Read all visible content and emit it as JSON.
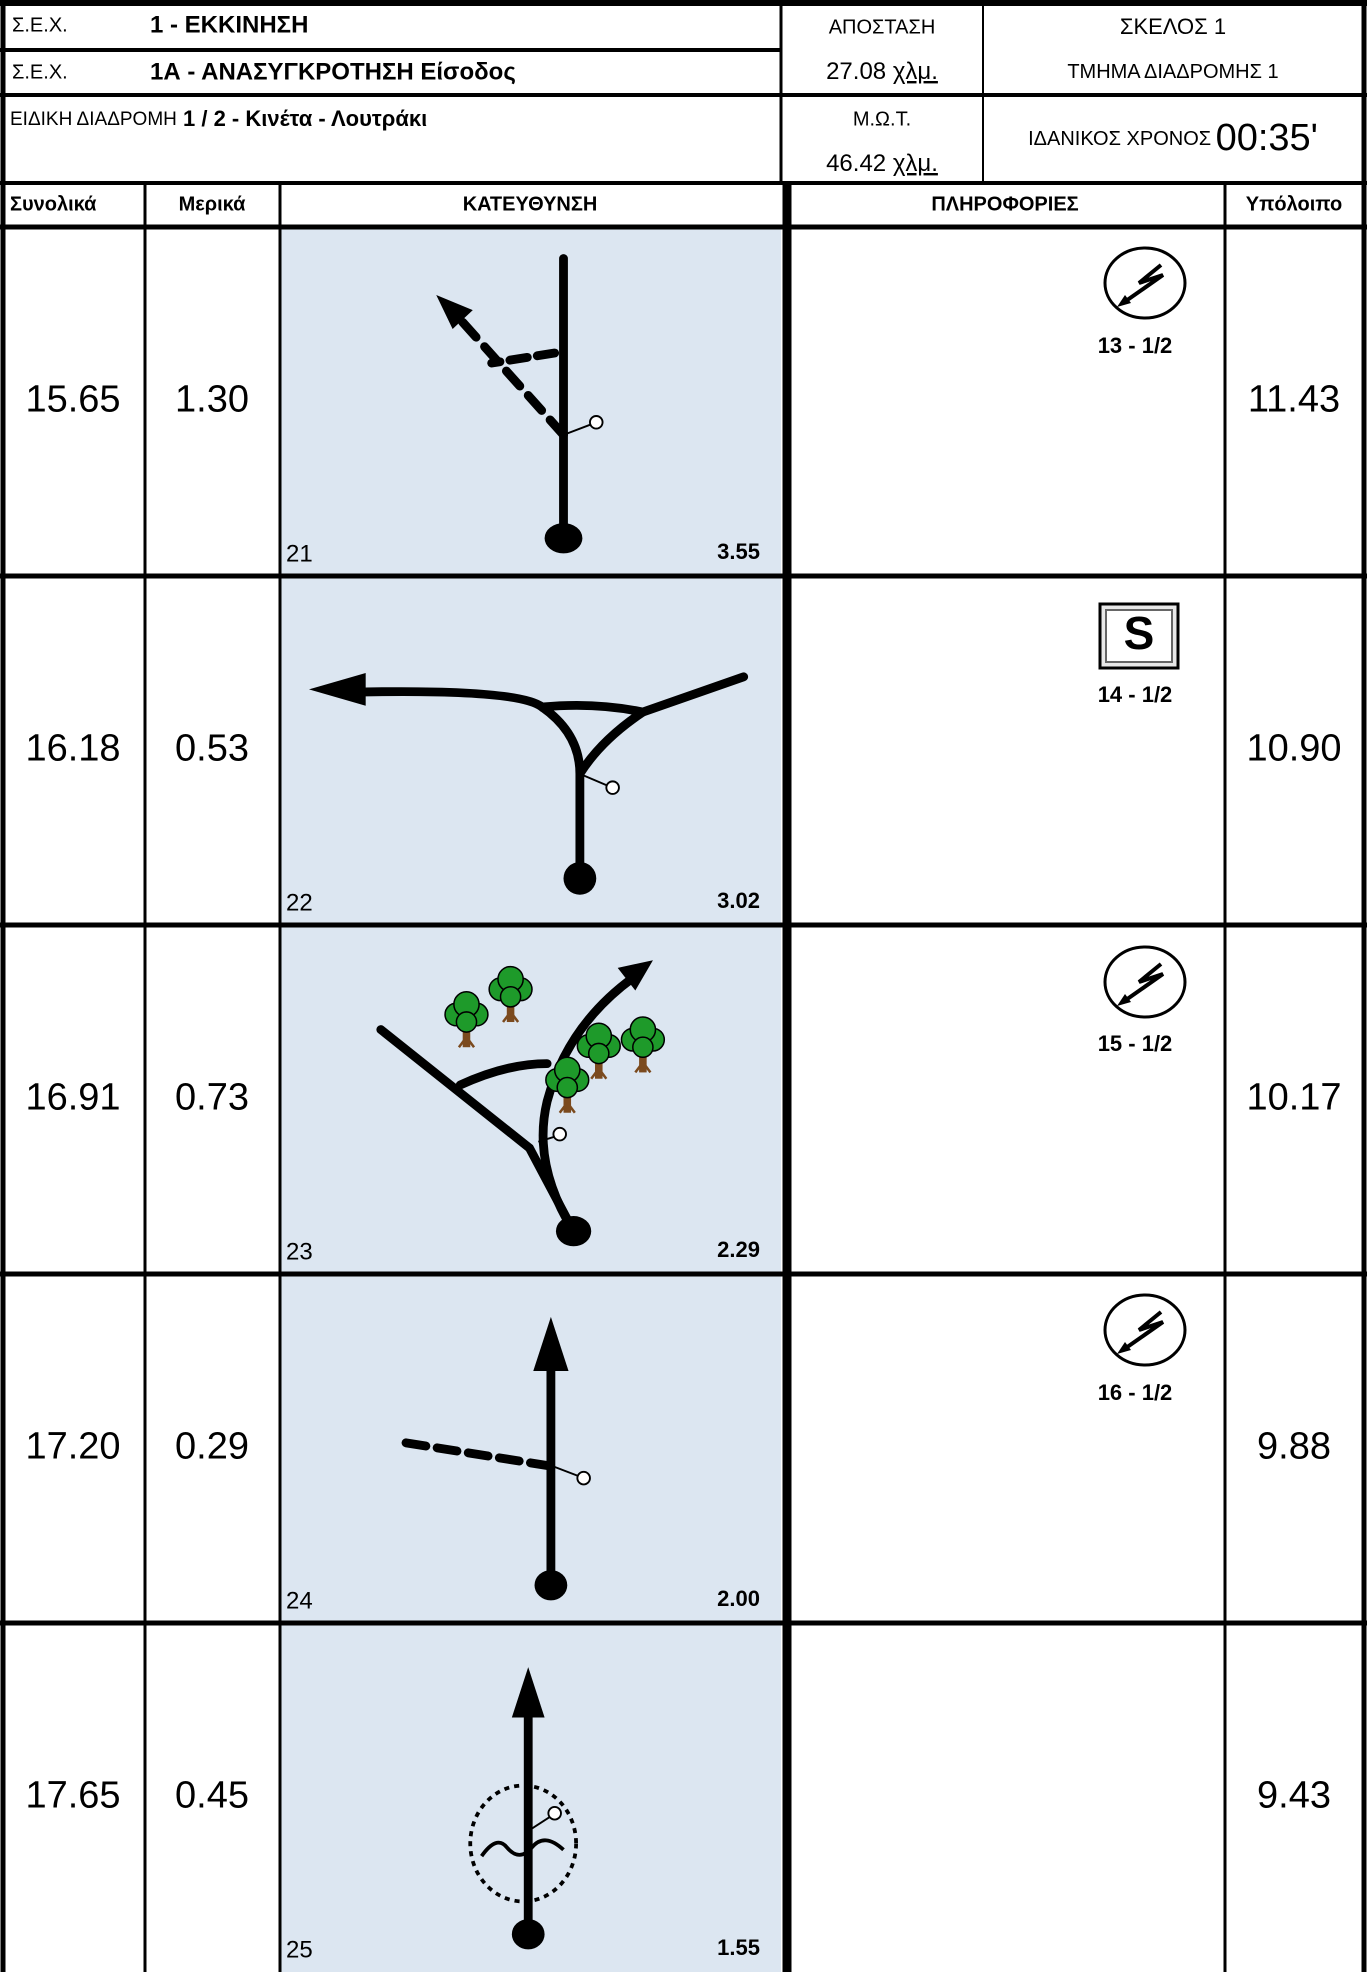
{
  "header": {
    "sex1_label": "Σ.Ε.Χ.",
    "sex1_value": "1 - ΕΚΚΙΝΗΣΗ",
    "sex2_label": "Σ.Ε.Χ.",
    "sex2_value": "1Α - ΑΝΑΣΥΓΚΡΟΤΗΣΗ Είσοδος",
    "special_label": "ΕΙΔΙΚΗ ΔΙΑΔΡΟΜΗ",
    "special_value": "1 / 2 - Κινέτα - Λουτράκι",
    "distance_label": "ΑΠΟΣΤΑΣΗ",
    "distance_value": "27.08",
    "distance_unit": "χλμ.",
    "mot_label": "Μ.Ω.Τ.",
    "mot_value": "46.42",
    "mot_unit": "χλμ.",
    "leg_label": "ΣΚΕΛΟΣ",
    "leg_value": "1",
    "section_label": "ΤΜΗΜΑ ΔΙΑΔΡΟΜΗΣ",
    "section_value": "1",
    "ideal_label": "ΙΔΑΝΙΚΟΣ ΧΡΟΝΟΣ",
    "ideal_value": "00:35'"
  },
  "columns": [
    "Συνολικά",
    "Μερικά",
    "ΚΑΤΕΥΘΥΝΣΗ",
    "ΠΛΗΡΟΦΟΡΙΕΣ",
    "Υπόλοιπο"
  ],
  "rows": [
    {
      "total": "15.65",
      "partial": "1.30",
      "number": "21",
      "next": "3.55",
      "info": "13 - 1/2",
      "remaining": "11.43"
    },
    {
      "total": "16.18",
      "partial": "0.53",
      "number": "22",
      "next": "3.02",
      "sign": "S",
      "info": "14 - 1/2",
      "remaining": "10.90"
    },
    {
      "total": "16.91",
      "partial": "0.73",
      "number": "23",
      "next": "2.29",
      "info": "15 - 1/2",
      "remaining": "10.17"
    },
    {
      "total": "17.20",
      "partial": "0.29",
      "number": "24",
      "next": "2.00",
      "info": "16 - 1/2",
      "remaining": "9.88"
    },
    {
      "total": "17.65",
      "partial": "0.45",
      "number": "25",
      "next": "1.55",
      "remaining": "9.43"
    }
  ]
}
